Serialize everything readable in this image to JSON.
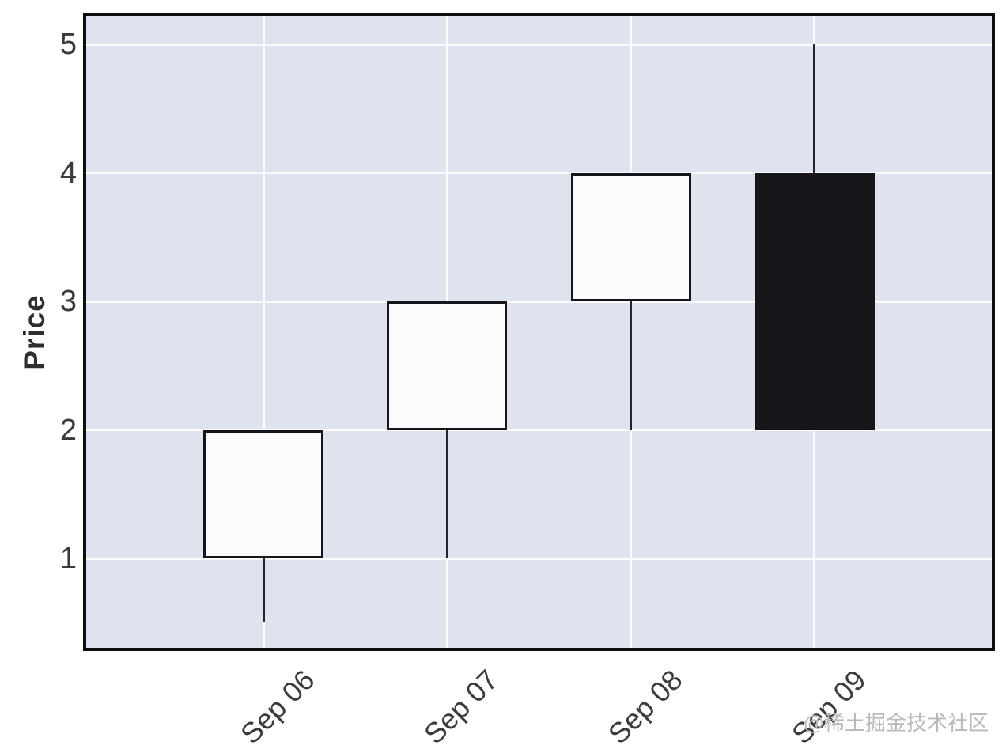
{
  "watermark": {
    "text": "@稀土掘金技术社区"
  },
  "colors": {
    "figure_bg": "#ffffff",
    "plot_bg": "#dfe3ee",
    "gridline": "#fafbfe",
    "frame": "#0d0d0d",
    "up_fill": "#fbfbfb",
    "down_fill": "#17171b",
    "candle_edge": "#16161a",
    "wick": "#24242a",
    "tick_text": "#3b3b3b",
    "axis_label_text": "#2e2e2e",
    "watermark_text": "#b9b9b9"
  },
  "chart_data": {
    "type": "candlestick",
    "title": "",
    "xlabel": "",
    "ylabel": "Price",
    "grid": true,
    "legend": false,
    "ylim": [
      0.3,
      5.22
    ],
    "y_ticks": [
      5,
      4,
      3,
      2,
      1
    ],
    "x_tick_labels": [
      "Sep 06",
      "Sep 07",
      "Sep 08",
      "Sep 09"
    ],
    "candles": [
      {
        "date": "Sep 06",
        "open": 1,
        "high": 2,
        "low": 0.5,
        "close": 2,
        "direction": "up"
      },
      {
        "date": "Sep 07",
        "open": 2,
        "high": 3,
        "low": 1,
        "close": 3,
        "direction": "up"
      },
      {
        "date": "Sep 08",
        "open": 3,
        "high": 4,
        "low": 2,
        "close": 4,
        "direction": "up"
      },
      {
        "date": "Sep 09",
        "open": 4,
        "high": 5,
        "low": 2,
        "close": 2,
        "direction": "down"
      }
    ]
  }
}
